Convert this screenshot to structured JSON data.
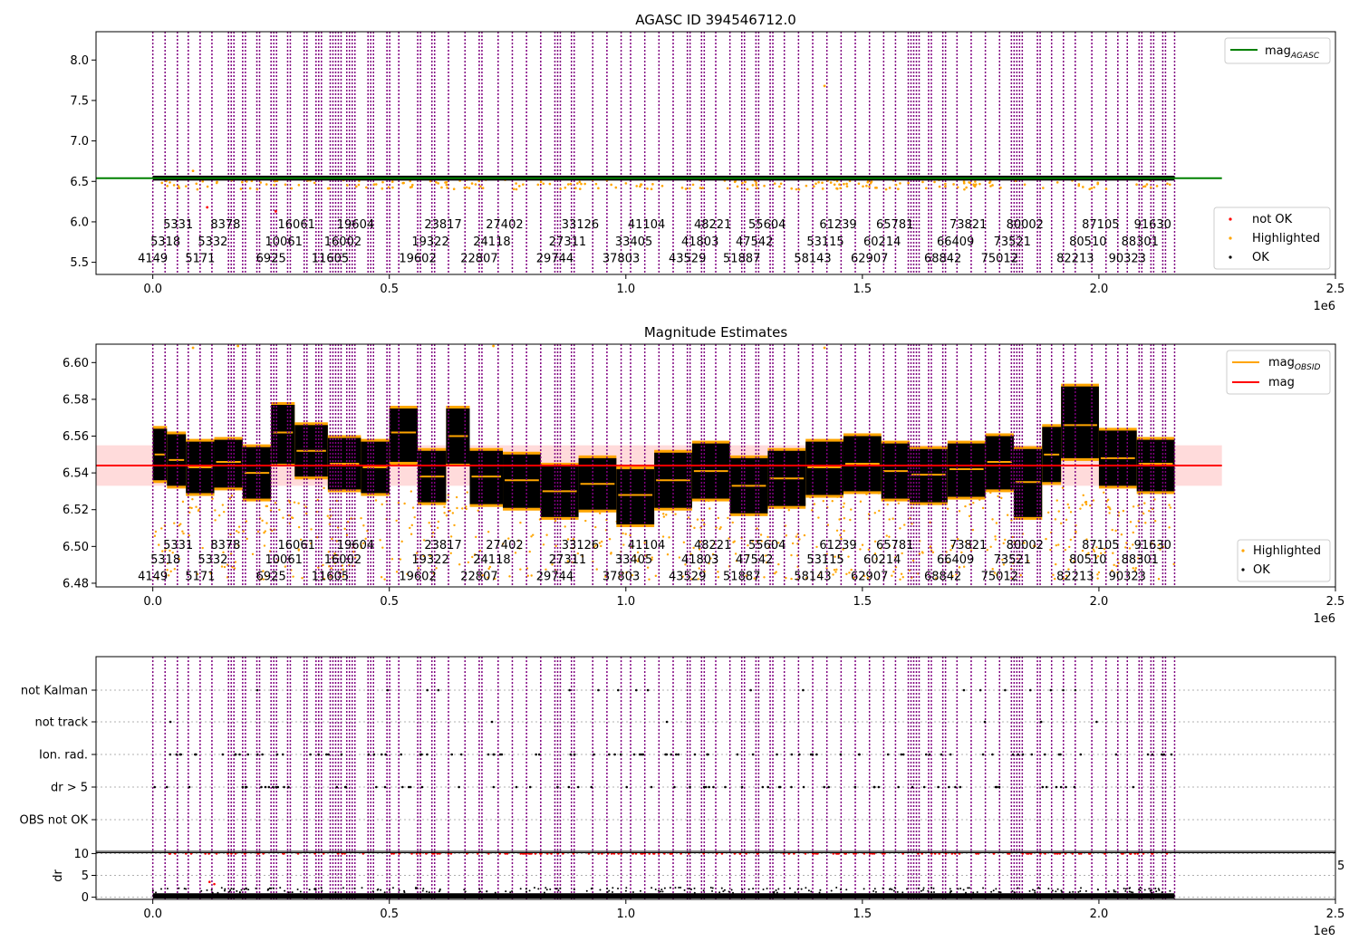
{
  "chart_data": [
    {
      "type": "scatter",
      "title": "AGASC ID 394546712.0",
      "xlim": [
        -120000,
        2500000
      ],
      "ylim": [
        5.35,
        8.35
      ],
      "x_ticks": [
        0,
        500000,
        1000000,
        1500000,
        2000000,
        2500000
      ],
      "x_tick_labels": [
        "0.0",
        "0.5",
        "1.0",
        "1.5",
        "2.0",
        "2.5"
      ],
      "x_offset_label": "1e6",
      "y_ticks": [
        5.5,
        6.0,
        6.5,
        7.0,
        7.5,
        8.0
      ],
      "y_tick_labels": [
        "5.5",
        "6.0",
        "6.5",
        "7.0",
        "7.5",
        "8.0"
      ],
      "mag_agasc": 6.54,
      "mag_agasc_x_range": [
        -120000,
        2260000
      ],
      "legend_upper": {
        "position": "top-right",
        "entries": [
          {
            "label": "mag",
            "subscript": "AGASC",
            "color": "#008000"
          }
        ]
      },
      "legend_lower": {
        "position": "bottom-right",
        "entries": [
          {
            "label": "not OK",
            "color": "#ff0000"
          },
          {
            "label": "Highlighted",
            "color": "#ffa500"
          },
          {
            "label": "OK",
            "color": "#000000"
          }
        ]
      },
      "annotation_rows": [
        {
          "y": 5.97,
          "text": [
            "5331",
            "8378",
            "16061",
            "19604",
            "23817",
            "27402",
            "33126",
            "41104",
            "48221",
            "55604",
            "61239",
            "65781",
            "73821",
            "80002",
            "87105",
            "91630"
          ]
        },
        {
          "y": 5.76,
          "text": [
            "5318",
            "5332",
            "10061",
            "16002",
            "19322",
            "24118",
            "27311",
            "33405",
            "41803",
            "47542",
            "53115",
            "60214",
            "66409",
            "73521",
            "80510",
            "88301"
          ]
        },
        {
          "y": 5.55,
          "text": [
            "4149",
            "5171",
            "6925",
            "11605",
            "19602",
            "22807",
            "29744",
            "37803",
            "43529",
            "51887",
            "58143",
            "62907",
            "68842",
            "75012",
            "82213",
            "90323"
          ]
        }
      ]
    },
    {
      "type": "scatter",
      "title": "Magnitude Estimates",
      "xlim": [
        -120000,
        2500000
      ],
      "ylim": [
        6.478,
        6.61
      ],
      "x_ticks": [
        0,
        500000,
        1000000,
        1500000,
        2000000,
        2500000
      ],
      "x_tick_labels": [
        "0.0",
        "0.5",
        "1.0",
        "1.5",
        "2.0",
        "2.5"
      ],
      "x_offset_label": "1e6",
      "y_ticks": [
        6.48,
        6.5,
        6.52,
        6.54,
        6.56,
        6.58,
        6.6
      ],
      "y_tick_labels": [
        "6.48",
        "6.50",
        "6.52",
        "6.54",
        "6.56",
        "6.58",
        "6.60"
      ],
      "mag": 6.544,
      "mag_band": [
        6.533,
        6.555
      ],
      "mag_x_range": [
        -120000,
        2260000
      ],
      "legend_upper": {
        "position": "top-right",
        "entries": [
          {
            "label": "mag",
            "subscript": "OBSID",
            "color": "#ffa500"
          },
          {
            "label": "mag",
            "subscript": "",
            "color": "#ff0000"
          }
        ]
      },
      "legend_lower": {
        "position": "bottom-right",
        "entries": [
          {
            "label": "Highlighted",
            "color": "#ffa500"
          },
          {
            "label": "OK",
            "color": "#000000"
          }
        ]
      },
      "annotation_rows": [
        {
          "y": 6.501,
          "text": [
            "5331",
            "8378",
            "16061",
            "19604",
            "23817",
            "27402",
            "33126",
            "41104",
            "48221",
            "55604",
            "61239",
            "65781",
            "73821",
            "80002",
            "87105",
            "91630"
          ]
        },
        {
          "y": 6.493,
          "text": [
            "5318",
            "5332",
            "10061",
            "16002",
            "19322",
            "24118",
            "27311",
            "33405",
            "41803",
            "47542",
            "53115",
            "60214",
            "66409",
            "73521",
            "80510",
            "88301"
          ]
        },
        {
          "y": 6.484,
          "text": [
            "4149",
            "5171",
            "6925",
            "11605",
            "19602",
            "22807",
            "29744",
            "37803",
            "43529",
            "51887",
            "58143",
            "62907",
            "68842",
            "75012",
            "82213",
            "90323"
          ]
        }
      ],
      "obsid_segments": [
        {
          "x0": 0,
          "x1": 30000,
          "mag": 6.55,
          "lo": 6.536,
          "hi": 6.564
        },
        {
          "x0": 30000,
          "x1": 70000,
          "mag": 6.547,
          "lo": 6.533,
          "hi": 6.561
        },
        {
          "x0": 70000,
          "x1": 130000,
          "mag": 6.543,
          "lo": 6.529,
          "hi": 6.557
        },
        {
          "x0": 130000,
          "x1": 190000,
          "mag": 6.546,
          "lo": 6.532,
          "hi": 6.558
        },
        {
          "x0": 190000,
          "x1": 250000,
          "mag": 6.54,
          "lo": 6.526,
          "hi": 6.554
        },
        {
          "x0": 250000,
          "x1": 300000,
          "mag": 6.562,
          "lo": 6.545,
          "hi": 6.577
        },
        {
          "x0": 300000,
          "x1": 370000,
          "mag": 6.552,
          "lo": 6.538,
          "hi": 6.566
        },
        {
          "x0": 370000,
          "x1": 440000,
          "mag": 6.545,
          "lo": 6.531,
          "hi": 6.559
        },
        {
          "x0": 440000,
          "x1": 500000,
          "mag": 6.543,
          "lo": 6.529,
          "hi": 6.557
        },
        {
          "x0": 500000,
          "x1": 560000,
          "mag": 6.562,
          "lo": 6.546,
          "hi": 6.575
        },
        {
          "x0": 560000,
          "x1": 620000,
          "mag": 6.538,
          "lo": 6.524,
          "hi": 6.552
        },
        {
          "x0": 620000,
          "x1": 670000,
          "mag": 6.56,
          "lo": 6.545,
          "hi": 6.575
        },
        {
          "x0": 670000,
          "x1": 740000,
          "mag": 6.538,
          "lo": 6.523,
          "hi": 6.552
        },
        {
          "x0": 740000,
          "x1": 820000,
          "mag": 6.536,
          "lo": 6.521,
          "hi": 6.55
        },
        {
          "x0": 820000,
          "x1": 900000,
          "mag": 6.53,
          "lo": 6.516,
          "hi": 6.544
        },
        {
          "x0": 900000,
          "x1": 980000,
          "mag": 6.534,
          "lo": 6.52,
          "hi": 6.548
        },
        {
          "x0": 980000,
          "x1": 1060000,
          "mag": 6.528,
          "lo": 6.512,
          "hi": 6.542
        },
        {
          "x0": 1060000,
          "x1": 1140000,
          "mag": 6.536,
          "lo": 6.521,
          "hi": 6.551
        },
        {
          "x0": 1140000,
          "x1": 1220000,
          "mag": 6.541,
          "lo": 6.526,
          "hi": 6.556
        },
        {
          "x0": 1220000,
          "x1": 1300000,
          "mag": 6.533,
          "lo": 6.518,
          "hi": 6.548
        },
        {
          "x0": 1300000,
          "x1": 1380000,
          "mag": 6.537,
          "lo": 6.522,
          "hi": 6.552
        },
        {
          "x0": 1380000,
          "x1": 1460000,
          "mag": 6.543,
          "lo": 6.528,
          "hi": 6.557
        },
        {
          "x0": 1460000,
          "x1": 1540000,
          "mag": 6.545,
          "lo": 6.53,
          "hi": 6.56
        },
        {
          "x0": 1540000,
          "x1": 1600000,
          "mag": 6.541,
          "lo": 6.526,
          "hi": 6.556
        },
        {
          "x0": 1600000,
          "x1": 1680000,
          "mag": 6.539,
          "lo": 6.524,
          "hi": 6.553
        },
        {
          "x0": 1680000,
          "x1": 1760000,
          "mag": 6.542,
          "lo": 6.527,
          "hi": 6.556
        },
        {
          "x0": 1760000,
          "x1": 1820000,
          "mag": 6.546,
          "lo": 6.531,
          "hi": 6.56
        },
        {
          "x0": 1820000,
          "x1": 1880000,
          "mag": 6.535,
          "lo": 6.516,
          "hi": 6.553
        },
        {
          "x0": 1880000,
          "x1": 1920000,
          "mag": 6.55,
          "lo": 6.535,
          "hi": 6.565
        },
        {
          "x0": 1920000,
          "x1": 2000000,
          "mag": 6.566,
          "lo": 6.548,
          "hi": 6.587
        },
        {
          "x0": 2000000,
          "x1": 2080000,
          "mag": 6.548,
          "lo": 6.533,
          "hi": 6.563
        },
        {
          "x0": 2080000,
          "x1": 2160000,
          "mag": 6.545,
          "lo": 6.53,
          "hi": 6.558
        }
      ]
    },
    {
      "type": "scatter",
      "title": "",
      "xlim": [
        -120000,
        2500000
      ],
      "x_ticks": [
        0,
        500000,
        1000000,
        1500000,
        2000000,
        2500000
      ],
      "x_tick_labels": [
        "0.0",
        "0.5",
        "1.0",
        "1.5",
        "2.0",
        "2.5"
      ],
      "x_offset_label": "1e6",
      "flag_labels": [
        "not Kalman",
        "not track",
        "Ion. rad.",
        "dr > 5",
        "OBS not OK"
      ],
      "dr_ylabel": "dr",
      "dr_ylim": [
        -0.5,
        10.5
      ],
      "dr_y_ticks": [
        0,
        5,
        10
      ],
      "dr_y_tick_labels": [
        "0",
        "5",
        "10"
      ],
      "dr_threshold": 5,
      "dr_threshold_label": "5"
    }
  ],
  "obs_boundaries": [
    {
      "x": 0,
      "w": 1
    },
    {
      "x": 26000,
      "w": 1
    },
    {
      "x": 52000,
      "w": 1
    },
    {
      "x": 75000,
      "w": 1
    },
    {
      "x": 100000,
      "w": 1
    },
    {
      "x": 125000,
      "w": 1
    },
    {
      "x": 160000,
      "w": 3
    },
    {
      "x": 190000,
      "w": 2
    },
    {
      "x": 220000,
      "w": 2
    },
    {
      "x": 250000,
      "w": 3
    },
    {
      "x": 285000,
      "w": 2
    },
    {
      "x": 320000,
      "w": 2
    },
    {
      "x": 345000,
      "w": 3
    },
    {
      "x": 375000,
      "w": 5
    },
    {
      "x": 410000,
      "w": 4
    },
    {
      "x": 455000,
      "w": 3
    },
    {
      "x": 495000,
      "w": 2
    },
    {
      "x": 520000,
      "w": 1
    },
    {
      "x": 560000,
      "w": 2
    },
    {
      "x": 590000,
      "w": 2
    },
    {
      "x": 625000,
      "w": 1
    },
    {
      "x": 660000,
      "w": 1
    },
    {
      "x": 690000,
      "w": 2
    },
    {
      "x": 730000,
      "w": 1
    },
    {
      "x": 760000,
      "w": 1
    },
    {
      "x": 790000,
      "w": 1
    },
    {
      "x": 820000,
      "w": 1
    },
    {
      "x": 850000,
      "w": 3
    },
    {
      "x": 885000,
      "w": 2
    },
    {
      "x": 930000,
      "w": 1
    },
    {
      "x": 960000,
      "w": 1
    },
    {
      "x": 990000,
      "w": 1
    },
    {
      "x": 1010000,
      "w": 1
    },
    {
      "x": 1040000,
      "w": 1
    },
    {
      "x": 1070000,
      "w": 1
    },
    {
      "x": 1100000,
      "w": 1
    },
    {
      "x": 1130000,
      "w": 2
    },
    {
      "x": 1160000,
      "w": 2
    },
    {
      "x": 1190000,
      "w": 1
    },
    {
      "x": 1220000,
      "w": 1
    },
    {
      "x": 1245000,
      "w": 2
    },
    {
      "x": 1275000,
      "w": 2
    },
    {
      "x": 1305000,
      "w": 2
    },
    {
      "x": 1335000,
      "w": 1
    },
    {
      "x": 1365000,
      "w": 1
    },
    {
      "x": 1395000,
      "w": 1
    },
    {
      "x": 1425000,
      "w": 1
    },
    {
      "x": 1455000,
      "w": 1
    },
    {
      "x": 1485000,
      "w": 1
    },
    {
      "x": 1515000,
      "w": 1
    },
    {
      "x": 1545000,
      "w": 1
    },
    {
      "x": 1570000,
      "w": 1
    },
    {
      "x": 1597000,
      "w": 5
    },
    {
      "x": 1640000,
      "w": 2
    },
    {
      "x": 1670000,
      "w": 2
    },
    {
      "x": 1700000,
      "w": 1
    },
    {
      "x": 1730000,
      "w": 1
    },
    {
      "x": 1760000,
      "w": 1
    },
    {
      "x": 1790000,
      "w": 1
    },
    {
      "x": 1815000,
      "w": 5
    },
    {
      "x": 1870000,
      "w": 2
    },
    {
      "x": 1900000,
      "w": 1
    },
    {
      "x": 1925000,
      "w": 1
    },
    {
      "x": 1950000,
      "w": 1
    },
    {
      "x": 1985000,
      "w": 1
    },
    {
      "x": 2015000,
      "w": 1
    },
    {
      "x": 2040000,
      "w": 1
    },
    {
      "x": 2060000,
      "w": 1
    },
    {
      "x": 2085000,
      "w": 2
    },
    {
      "x": 2110000,
      "w": 2
    },
    {
      "x": 2135000,
      "w": 2
    },
    {
      "x": 2160000,
      "w": 1
    }
  ],
  "colors": {
    "boundary": "#800080",
    "ok": "#000000",
    "highlighted": "#ffa500",
    "not_ok": "#ff0000",
    "mag_agasc": "#008000",
    "mag": "#ff0000",
    "mag_band": "#ffcccc",
    "mag_obsid": "#ffa500",
    "grid": "#b0b0b0"
  }
}
